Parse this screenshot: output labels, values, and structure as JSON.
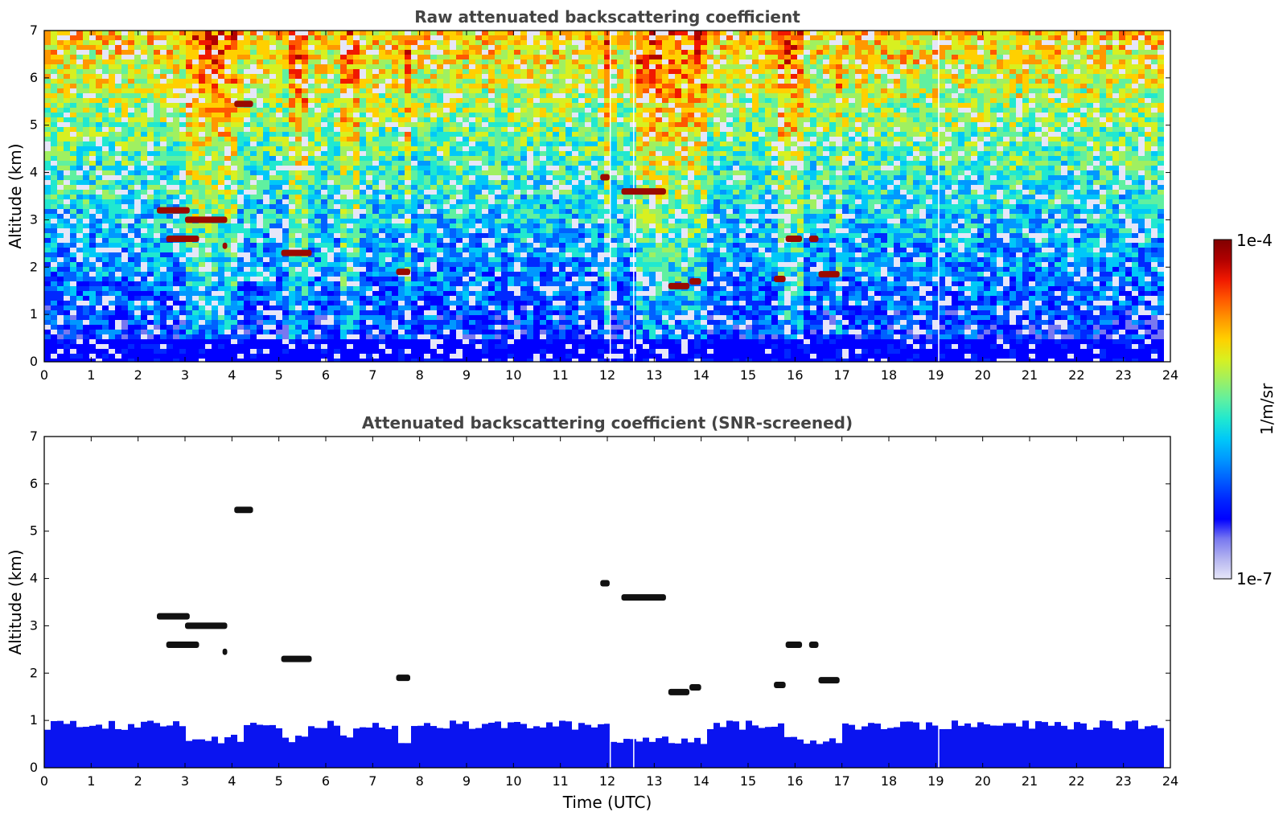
{
  "chart_data": [
    {
      "type": "heatmap",
      "title": "Raw attenuated backscattering coefficient",
      "xlabel": "",
      "ylabel": "Altitude (km)",
      "xlim": [
        0,
        24
      ],
      "ylim": [
        0,
        7
      ],
      "xticks": [
        "0",
        "1",
        "2",
        "3",
        "4",
        "5",
        "6",
        "7",
        "8",
        "9",
        "10",
        "11",
        "12",
        "13",
        "14",
        "15",
        "16",
        "17",
        "18",
        "19",
        "20",
        "21",
        "22",
        "23",
        "24"
      ],
      "yticks": [
        "0",
        "1",
        "2",
        "3",
        "4",
        "5",
        "6",
        "7"
      ],
      "data_end_time": 23.8,
      "data_gaps_time": [
        12.05,
        12.55,
        19.05
      ],
      "cloud_features": [
        {
          "t_start": 2.4,
          "t_end": 3.1,
          "alt": 3.2
        },
        {
          "t_start": 3.0,
          "t_end": 3.9,
          "alt": 3.0
        },
        {
          "t_start": 2.6,
          "t_end": 3.3,
          "alt": 2.6
        },
        {
          "t_start": 3.8,
          "t_end": 3.9,
          "alt": 2.45
        },
        {
          "t_start": 4.05,
          "t_end": 4.45,
          "alt": 5.45
        },
        {
          "t_start": 5.05,
          "t_end": 5.7,
          "alt": 2.3
        },
        {
          "t_start": 7.5,
          "t_end": 7.8,
          "alt": 1.9
        },
        {
          "t_start": 11.85,
          "t_end": 12.05,
          "alt": 3.9
        },
        {
          "t_start": 12.3,
          "t_end": 13.25,
          "alt": 3.6
        },
        {
          "t_start": 13.3,
          "t_end": 13.75,
          "alt": 1.6
        },
        {
          "t_start": 13.75,
          "t_end": 14.0,
          "alt": 1.7
        },
        {
          "t_start": 15.55,
          "t_end": 15.8,
          "alt": 1.75
        },
        {
          "t_start": 15.8,
          "t_end": 16.15,
          "alt": 2.6
        },
        {
          "t_start": 16.3,
          "t_end": 16.5,
          "alt": 2.6
        },
        {
          "t_start": 16.5,
          "t_end": 16.95,
          "alt": 1.85
        }
      ],
      "colorscale": "jet"
    },
    {
      "type": "heatmap",
      "title": "Attenuated backscattering coefficient (SNR-screened)",
      "xlabel": "Time (UTC)",
      "ylabel": "Altitude (km)",
      "xlim": [
        0,
        24
      ],
      "ylim": [
        0,
        7
      ],
      "xticks": [
        "0",
        "1",
        "2",
        "3",
        "4",
        "5",
        "6",
        "7",
        "8",
        "9",
        "10",
        "11",
        "12",
        "13",
        "14",
        "15",
        "16",
        "17",
        "18",
        "19",
        "20",
        "21",
        "22",
        "23",
        "24"
      ],
      "yticks": [
        "0",
        "1",
        "2",
        "3",
        "4",
        "5",
        "6",
        "7"
      ],
      "boundary_layer_top_km": 0.9,
      "colorscale": "jet"
    }
  ],
  "colorbar": {
    "label": "1/m/sr",
    "max_label": "1e-4",
    "min_label": "1e-7",
    "colors": [
      "#e6e6f8",
      "#b4b4f0",
      "#7878f0",
      "#0000ff",
      "#0028ff",
      "#0060ff",
      "#0098ff",
      "#00c8f8",
      "#20e8d0",
      "#60f0a0",
      "#a0f060",
      "#d8f020",
      "#ffd000",
      "#ff9800",
      "#ff5800",
      "#f01800",
      "#b00000",
      "#800000"
    ]
  }
}
